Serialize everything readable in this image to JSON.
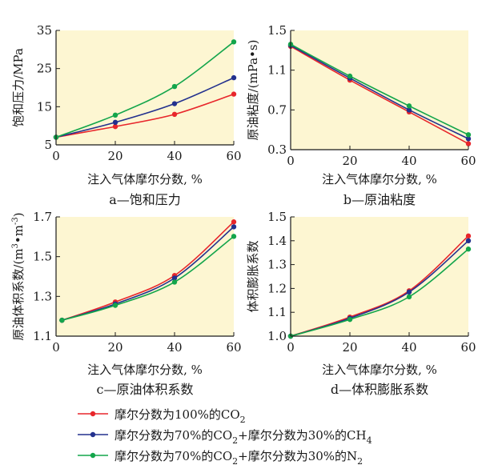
{
  "colors": {
    "plot_bg": "#fdf6d2",
    "series_co2": "#e8262b",
    "series_ch4": "#23318e",
    "series_n2": "#13a54b",
    "axis": "#1a1a1a"
  },
  "legend": {
    "placement": "bottom",
    "entries": [
      {
        "pre": "摩尔分数为100%的CO",
        "sub": "2",
        "post": ""
      },
      {
        "pre": "摩尔分数为70%的CO",
        "sub": "2",
        "mid": "+摩尔分数为30%的CH",
        "sub2": "4"
      },
      {
        "pre": "摩尔分数为70%的CO",
        "sub": "2",
        "mid": "+摩尔分数为30%的N",
        "sub2": "2"
      }
    ]
  },
  "chart_data": [
    {
      "id": "a",
      "type": "line",
      "caption": "a—饱和压力",
      "xlabel": "注入气体摩尔分数, %",
      "ylabel": "饱和压力/MPa",
      "xlim": [
        0,
        60
      ],
      "ylim": [
        5,
        35
      ],
      "xticks": [
        "0",
        "20",
        "40",
        "60"
      ],
      "yticks": [
        "5",
        "15",
        "25",
        "35"
      ],
      "x": [
        0,
        20,
        40,
        60
      ],
      "series": [
        {
          "color_key": "series_co2",
          "values": [
            7.0,
            9.8,
            13.0,
            18.3
          ]
        },
        {
          "color_key": "series_ch4",
          "values": [
            7.0,
            10.9,
            15.8,
            22.6
          ]
        },
        {
          "color_key": "series_n2",
          "values": [
            7.0,
            12.8,
            20.3,
            32.0
          ]
        }
      ]
    },
    {
      "id": "b",
      "type": "line",
      "caption": "b—原油粘度",
      "xlabel": "注入气体摩尔分数, %",
      "ylabel": "原油粘度/(mPa•s)",
      "xlim": [
        0,
        60
      ],
      "ylim": [
        0.3,
        1.5
      ],
      "xticks": [
        "0",
        "20",
        "40",
        "60"
      ],
      "yticks": [
        "0.3",
        "0.7",
        "1.1",
        "1.5"
      ],
      "x": [
        0,
        20,
        40,
        60
      ],
      "series": [
        {
          "color_key": "series_co2",
          "values": [
            1.34,
            1.0,
            0.68,
            0.36
          ]
        },
        {
          "color_key": "series_ch4",
          "values": [
            1.35,
            1.02,
            0.7,
            0.41
          ]
        },
        {
          "color_key": "series_n2",
          "values": [
            1.36,
            1.04,
            0.74,
            0.45
          ]
        }
      ]
    },
    {
      "id": "c",
      "type": "line",
      "caption": "c—原油体积系数",
      "xlabel": "注入气体摩尔分数, %",
      "ylabel_pre": "原油体积系数/(m",
      "ylabel_sup1": "3",
      "ylabel_mid": "•m",
      "ylabel_sup2": "-3",
      "ylabel_post": ")",
      "xlim": [
        0,
        60
      ],
      "ylim": [
        1.1,
        1.7
      ],
      "xticks": [
        "0",
        "20",
        "40",
        "60"
      ],
      "yticks": [
        "1.1",
        "1.3",
        "1.5",
        "1.7"
      ],
      "x": [
        2,
        20,
        40,
        60
      ],
      "series": [
        {
          "color_key": "series_co2",
          "values": [
            1.18,
            1.272,
            1.405,
            1.675
          ]
        },
        {
          "color_key": "series_ch4",
          "values": [
            1.18,
            1.262,
            1.392,
            1.65
          ]
        },
        {
          "color_key": "series_n2",
          "values": [
            1.18,
            1.255,
            1.372,
            1.602
          ]
        }
      ]
    },
    {
      "id": "d",
      "type": "line",
      "caption": "d—体积膨胀系数",
      "xlabel": "注入气体摩尔分数, %",
      "ylabel": "体积膨胀系数",
      "xlim": [
        0,
        60
      ],
      "ylim": [
        1.0,
        1.5
      ],
      "xticks": [
        "0",
        "20",
        "40",
        "60"
      ],
      "yticks": [
        "1.0",
        "1.1",
        "1.2",
        "1.3",
        "1.4",
        "1.5"
      ],
      "x": [
        0,
        20,
        40,
        60
      ],
      "series": [
        {
          "color_key": "series_co2",
          "values": [
            1.0,
            1.08,
            1.19,
            1.42
          ]
        },
        {
          "color_key": "series_ch4",
          "values": [
            1.0,
            1.075,
            1.185,
            1.4
          ]
        },
        {
          "color_key": "series_n2",
          "values": [
            1.0,
            1.07,
            1.165,
            1.365
          ]
        }
      ]
    }
  ]
}
